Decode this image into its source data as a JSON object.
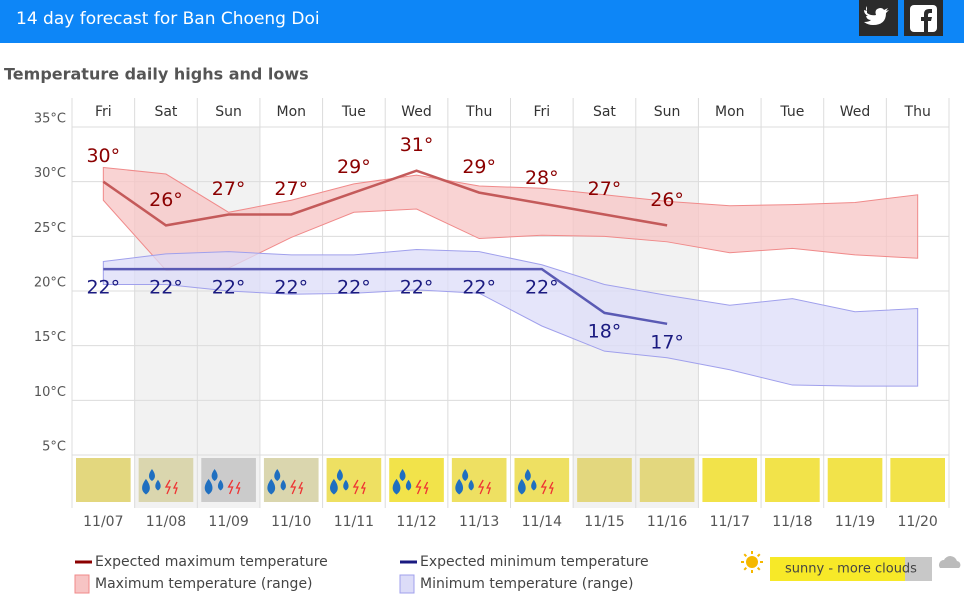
{
  "header": {
    "title": "14 day forecast for Ban Choeng Doi"
  },
  "chart_data": {
    "type": "temperature-range",
    "title": "Temperature daily highs and lows",
    "categories": [
      "Fri",
      "Sat",
      "Sun",
      "Mon",
      "Tue",
      "Wed",
      "Thu",
      "Fri",
      "Sat",
      "Sun",
      "Mon",
      "Tue",
      "Wed",
      "Thu"
    ],
    "dates": [
      "11/07",
      "11/08",
      "11/09",
      "11/10",
      "11/11",
      "11/12",
      "11/13",
      "11/14",
      "11/15",
      "11/16",
      "11/17",
      "11/18",
      "11/19",
      "11/20"
    ],
    "shaded": [
      false,
      true,
      true,
      false,
      false,
      false,
      false,
      false,
      true,
      true,
      false,
      false,
      false,
      false
    ],
    "shade_color": "#f2f2f2",
    "ylim": [
      0,
      35
    ],
    "yticks": [
      {
        "value": 5,
        "label": "5°C"
      },
      {
        "value": 10,
        "label": "10°C"
      },
      {
        "value": 15,
        "label": "15°C"
      },
      {
        "value": 20,
        "label": "20°C"
      },
      {
        "value": 25,
        "label": "25°C"
      },
      {
        "value": 30,
        "label": "30°C"
      },
      {
        "value": 35,
        "label": "35°C"
      }
    ],
    "grid": true,
    "series": [
      {
        "name": "Maximum temperature (range)",
        "kind": "range",
        "color": "#f7c4c4",
        "stroke": "#f08a8a",
        "high": [
          31.3,
          30.7,
          27.2,
          28.3,
          29.8,
          30.6,
          29.6,
          29.4,
          28.8,
          28.2,
          27.8,
          27.9,
          28.1,
          28.8
        ],
        "low": [
          28.3,
          21.9,
          22.1,
          24.9,
          27.2,
          27.5,
          24.8,
          25.1,
          25.0,
          24.5,
          23.5,
          23.9,
          23.3,
          23.0
        ]
      },
      {
        "name": "Minimum temperature (range)",
        "kind": "range",
        "color": "#dcdcf8",
        "stroke": "#a0a0ec",
        "high": [
          22.7,
          23.4,
          23.6,
          23.3,
          23.3,
          23.8,
          23.6,
          22.4,
          20.6,
          19.6,
          18.7,
          19.3,
          18.1,
          18.4
        ],
        "low": [
          20.6,
          20.6,
          20.0,
          19.7,
          19.8,
          20.1,
          19.8,
          16.8,
          14.5,
          13.9,
          12.8,
          11.4,
          11.3,
          11.3
        ]
      },
      {
        "name": "Expected maximum temperature",
        "kind": "line",
        "color": "#c45a5a",
        "label_color": "#8b0000",
        "label_side": "above",
        "values": [
          30,
          26,
          27,
          27,
          29,
          31,
          29,
          28,
          27,
          26,
          null,
          null,
          null,
          null
        ],
        "value_labels": [
          "30°",
          "26°",
          "27°",
          "27°",
          "29°",
          "31°",
          "29°",
          "28°",
          "27°",
          "26°",
          null,
          null,
          null,
          null
        ]
      },
      {
        "name": "Expected minimum temperature",
        "kind": "line",
        "color": "#5a5ab4",
        "label_color": "#1a1a80",
        "label_side": "below",
        "values": [
          22,
          22,
          22,
          22,
          22,
          22,
          22,
          22,
          18,
          17,
          null,
          null,
          null,
          null
        ],
        "value_labels": [
          "22°",
          "22°",
          "22°",
          "22°",
          "22°",
          "22°",
          "22°",
          "22°",
          "18°",
          "17°",
          null,
          null,
          null,
          null
        ]
      }
    ],
    "weather": [
      {
        "color": "#e3d77e",
        "rain": false
      },
      {
        "color": "#dad6ae",
        "rain": true
      },
      {
        "color": "#cbcbcb",
        "rain": true
      },
      {
        "color": "#dad6ae",
        "rain": true
      },
      {
        "color": "#eee062",
        "rain": true
      },
      {
        "color": "#f2e34a",
        "rain": true
      },
      {
        "color": "#eee062",
        "rain": true
      },
      {
        "color": "#eee062",
        "rain": true
      },
      {
        "color": "#e3d77e",
        "rain": false
      },
      {
        "color": "#e3d77e",
        "rain": false
      },
      {
        "color": "#f2e34a",
        "rain": false
      },
      {
        "color": "#f2e34a",
        "rain": false
      },
      {
        "color": "#f2e34a",
        "rain": false
      },
      {
        "color": "#f2e34a",
        "rain": false
      }
    ],
    "weather_legend": {
      "label": "sunny - more clouds",
      "color": "#f7e928"
    }
  }
}
